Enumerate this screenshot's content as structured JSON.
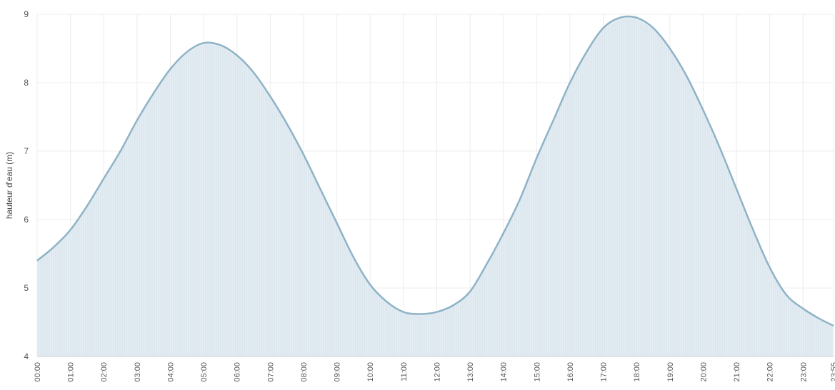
{
  "chart_data": {
    "type": "area",
    "ylabel": "hauteur d'eau (m)",
    "xlabel": "",
    "ylim": [
      4,
      9
    ],
    "yticks": [
      4,
      5,
      6,
      7,
      8,
      9
    ],
    "x_tick_labels": [
      "00:00",
      "01:00",
      "02:00",
      "03:00",
      "04:00",
      "05:00",
      "06:00",
      "07:00",
      "08:00",
      "09:00",
      "10:00",
      "11:00",
      "12:00",
      "13:00",
      "14:00",
      "15:00",
      "16:00",
      "17:00",
      "18:00",
      "19:00",
      "20:00",
      "21:00",
      "22:00",
      "23:00",
      "23:55"
    ],
    "grid": true,
    "colors": {
      "line": "#8fb3c6",
      "fill": "#e4edf3",
      "grid": "#ececec"
    },
    "series": [
      {
        "x": [
          "00:00",
          "00:30",
          "01:00",
          "01:30",
          "02:00",
          "02:30",
          "03:00",
          "03:30",
          "04:00",
          "04:30",
          "05:00",
          "05:30",
          "06:00",
          "06:30",
          "07:00",
          "07:30",
          "08:00",
          "08:30",
          "09:00",
          "09:30",
          "10:00",
          "10:30",
          "11:00",
          "11:30",
          "12:00",
          "12:30",
          "13:00",
          "13:30",
          "14:00",
          "14:30",
          "15:00",
          "15:30",
          "16:00",
          "16:30",
          "17:00",
          "17:30",
          "18:00",
          "18:30",
          "19:00",
          "19:30",
          "20:00",
          "20:30",
          "21:00",
          "21:30",
          "22:00",
          "22:30",
          "23:00",
          "23:30",
          "23:55"
        ],
        "values": [
          5.4,
          5.6,
          5.85,
          6.2,
          6.6,
          7.0,
          7.45,
          7.85,
          8.2,
          8.45,
          8.58,
          8.55,
          8.4,
          8.15,
          7.8,
          7.4,
          6.95,
          6.45,
          5.95,
          5.45,
          5.05,
          4.8,
          4.65,
          4.62,
          4.65,
          4.75,
          4.95,
          5.35,
          5.8,
          6.3,
          6.9,
          7.45,
          8.0,
          8.45,
          8.8,
          8.95,
          8.95,
          8.8,
          8.5,
          8.1,
          7.6,
          7.05,
          6.45,
          5.85,
          5.3,
          4.9,
          4.7,
          4.55,
          4.45
        ]
      }
    ]
  }
}
